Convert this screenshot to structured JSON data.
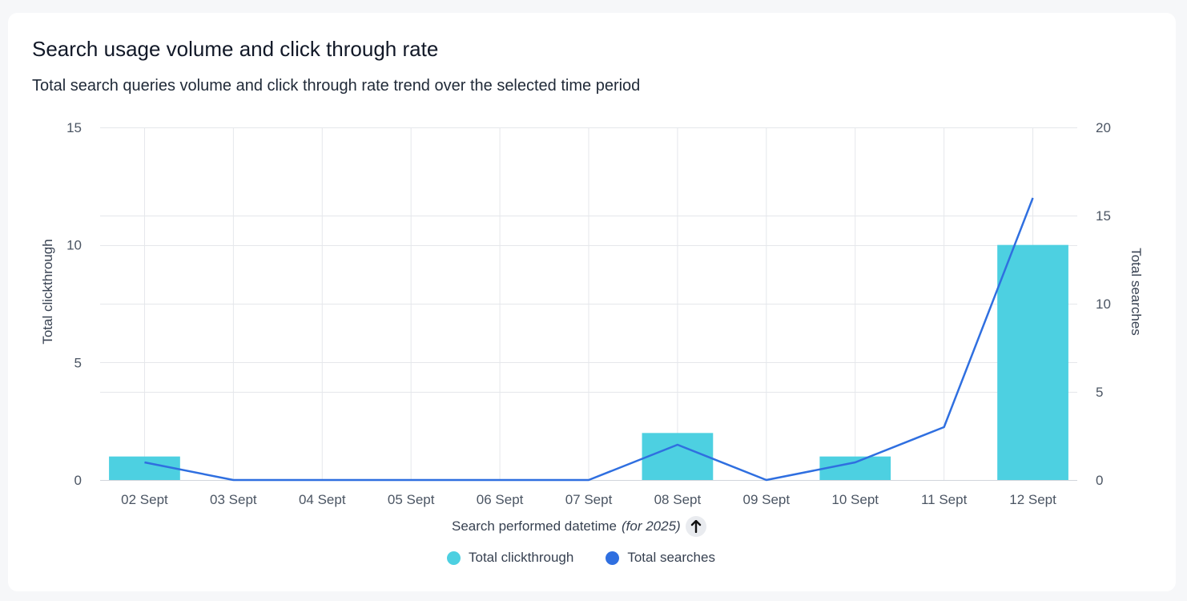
{
  "card": {
    "title": "Search usage volume and click through rate",
    "subtitle": "Total search queries volume and click through rate trend over the selected time period",
    "x_axis_label_main": "Search performed datetime",
    "x_axis_label_qualifier": "(for 2025)",
    "sort_icon": "arrow-up-icon"
  },
  "legend": [
    {
      "label": "Total clickthrough",
      "color": "#4dd0e1"
    },
    {
      "label": "Total searches",
      "color": "#2f6fe0"
    }
  ],
  "chart_data": {
    "type": "bar",
    "categories": [
      "02 Sept",
      "03 Sept",
      "04 Sept",
      "05 Sept",
      "06 Sept",
      "07 Sept",
      "08 Sept",
      "09 Sept",
      "10 Sept",
      "11 Sept",
      "12 Sept"
    ],
    "series": [
      {
        "name": "Total clickthrough",
        "type": "bar",
        "axis": "left",
        "color": "#4dd0e1",
        "values": [
          1,
          0,
          0,
          0,
          0,
          0,
          2,
          0,
          1,
          0,
          10
        ]
      },
      {
        "name": "Total searches",
        "type": "line",
        "axis": "right",
        "color": "#2f6fe0",
        "values": [
          1,
          0,
          0,
          0,
          0,
          0,
          2,
          0,
          1,
          3,
          16
        ]
      }
    ],
    "ylabel": "Total clickthrough",
    "y2label": "Total searches",
    "ylim": [
      0,
      15
    ],
    "y2lim": [
      0,
      20
    ],
    "yticks": [
      0,
      5,
      10,
      15
    ],
    "y2ticks": [
      0,
      5,
      10,
      15,
      20
    ],
    "grid": true
  }
}
